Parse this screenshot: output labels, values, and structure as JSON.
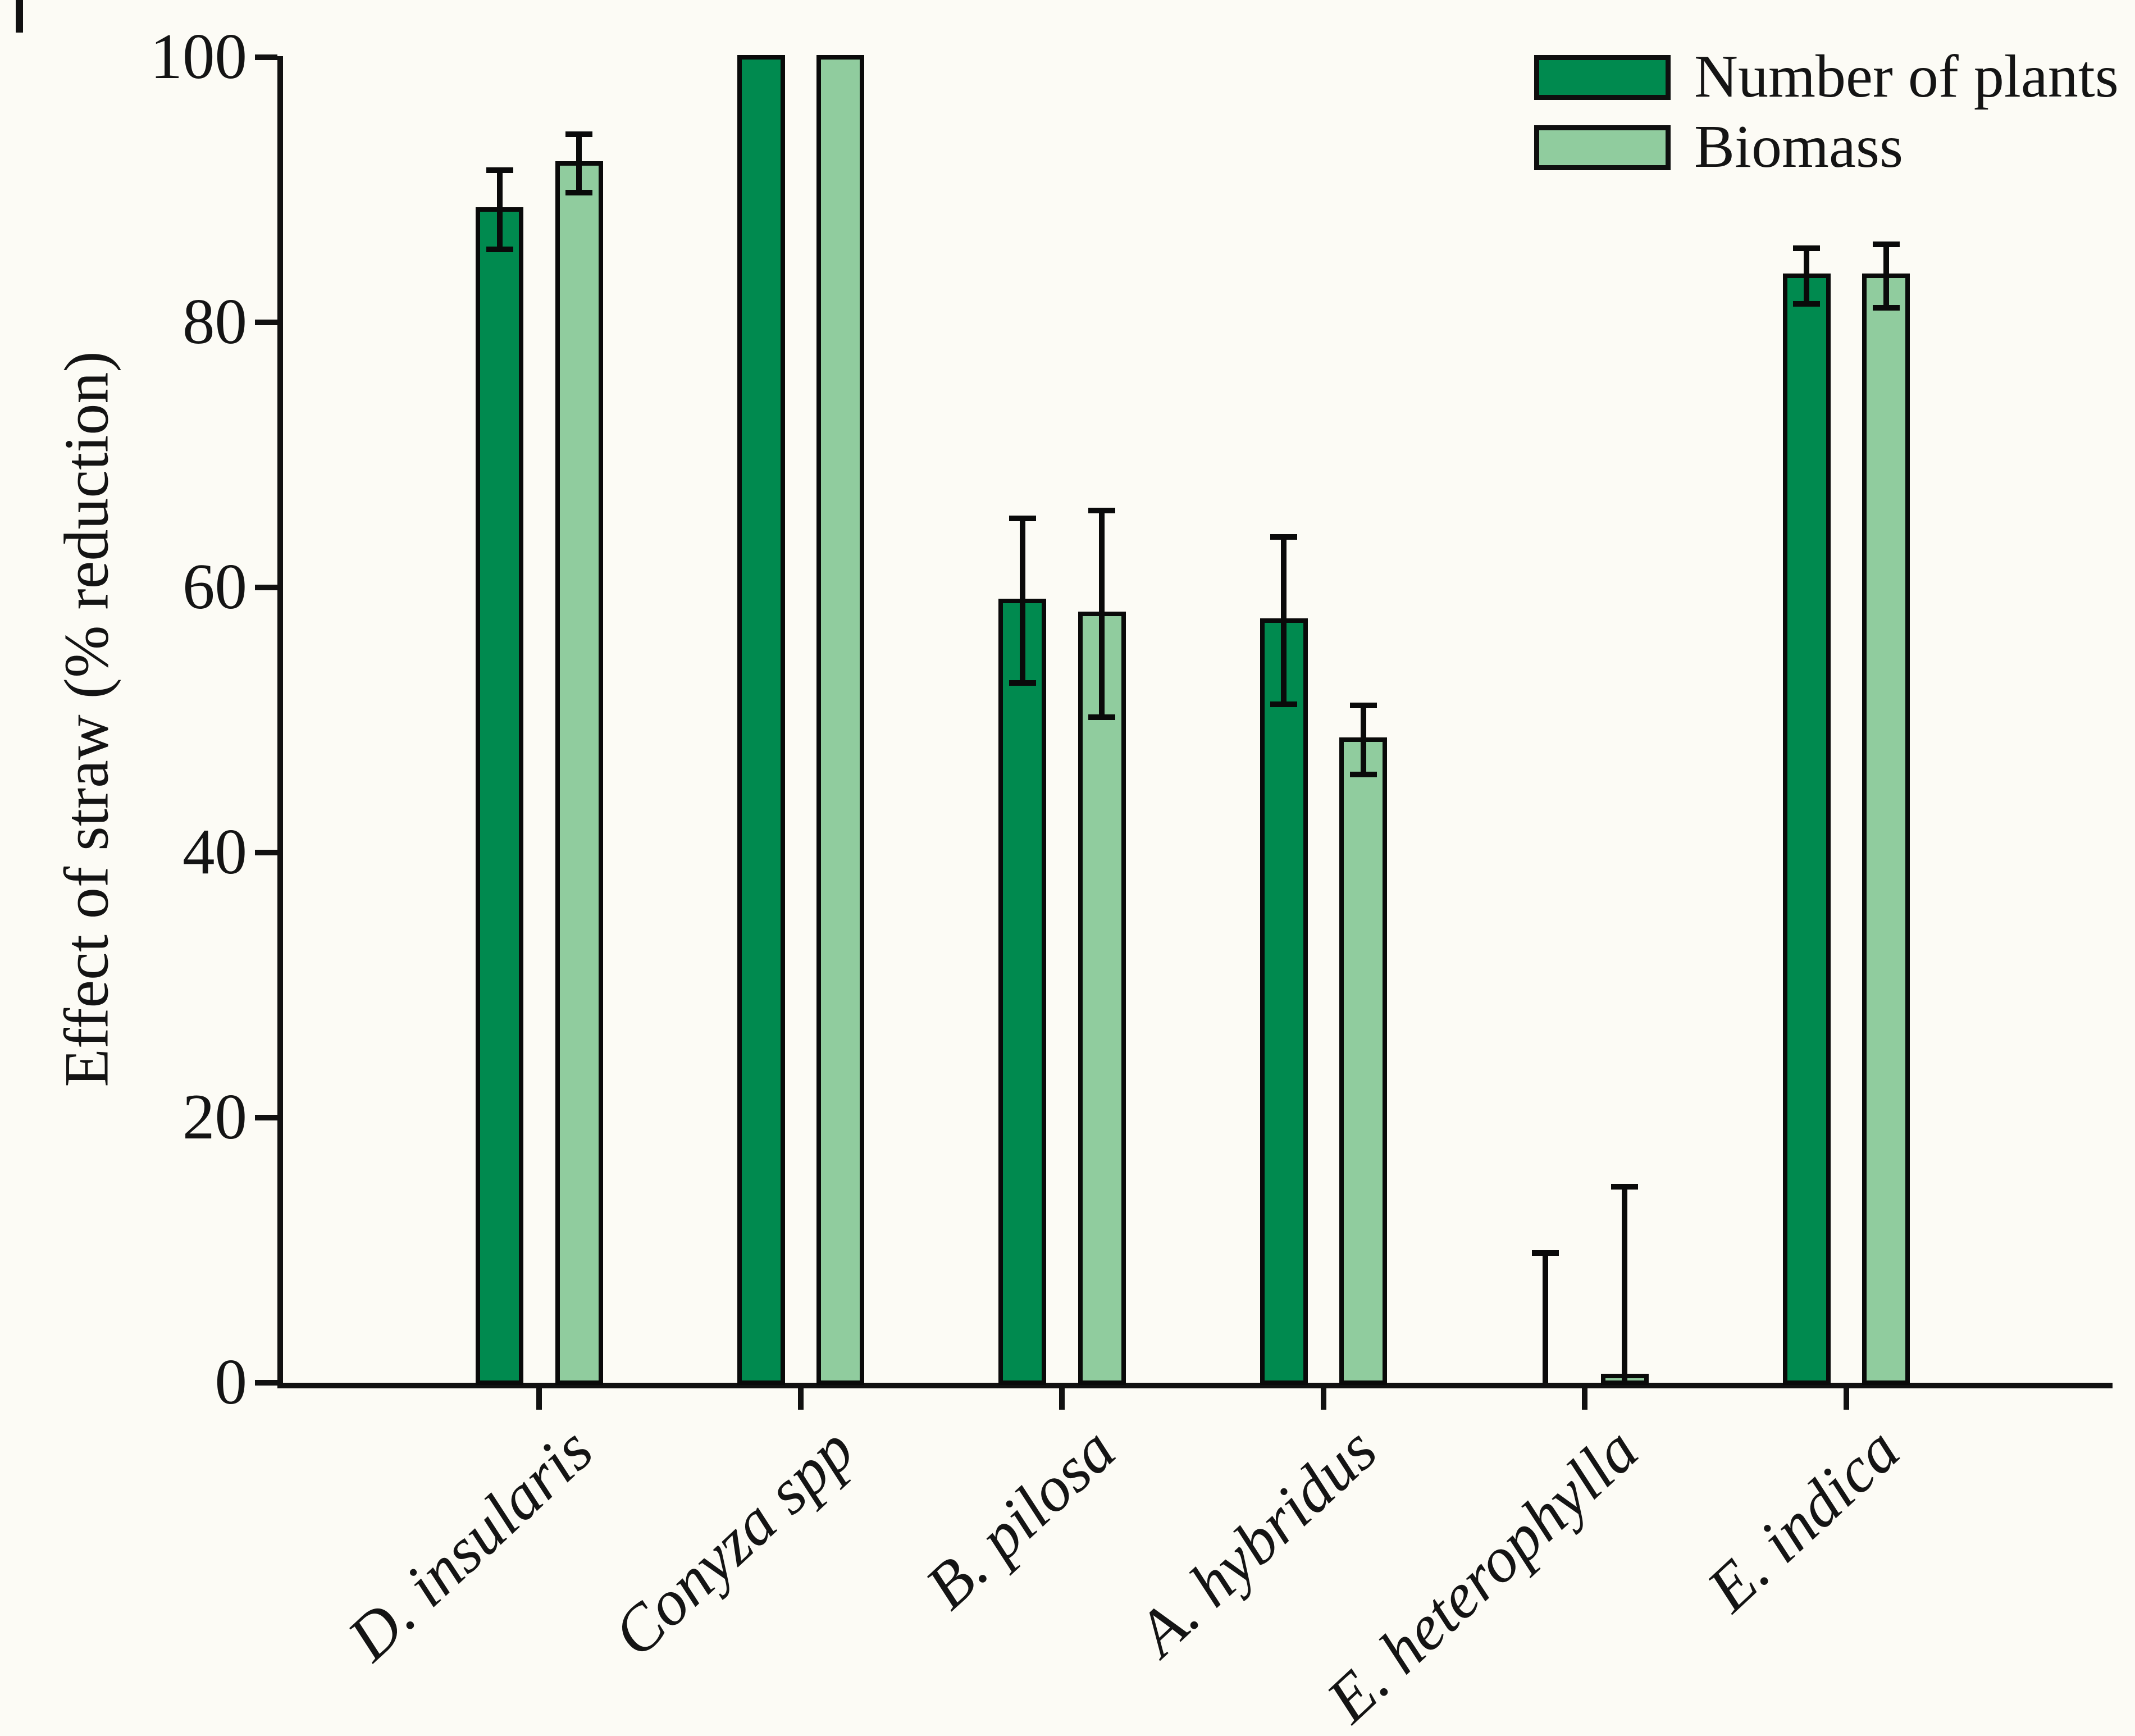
{
  "chart_data": {
    "type": "bar",
    "title": "",
    "xlabel": "",
    "ylabel": "Effect of straw (% reduction)",
    "ylim": [
      0,
      100
    ],
    "y_ticks": [
      0,
      20,
      40,
      60,
      80,
      100
    ],
    "grid": false,
    "legend_position": "top-right",
    "categories": [
      "D. insularis",
      "Conyza spp",
      "B. pilosa",
      "A. hybridus",
      "E. heterophylla",
      "E. indica"
    ],
    "series": [
      {
        "name": "Number of plants",
        "color": "#008a4f",
        "values": [
          88.5,
          100,
          59,
          57.5,
          0,
          83.5
        ],
        "errors_up": [
          3,
          0,
          6.2,
          6.3,
          9.8,
          2.1
        ],
        "errors_down": [
          3,
          0,
          6.2,
          6.3,
          0,
          2.1
        ]
      },
      {
        "name": "Biomass",
        "color": "#90cc9e",
        "values": [
          92,
          100,
          58,
          48.5,
          0.5,
          83.5
        ],
        "errors_up": [
          2.2,
          0,
          7.8,
          2.6,
          14.3,
          2.4
        ],
        "errors_down": [
          2.2,
          0,
          7.8,
          2.6,
          0,
          2.4
        ]
      }
    ]
  }
}
